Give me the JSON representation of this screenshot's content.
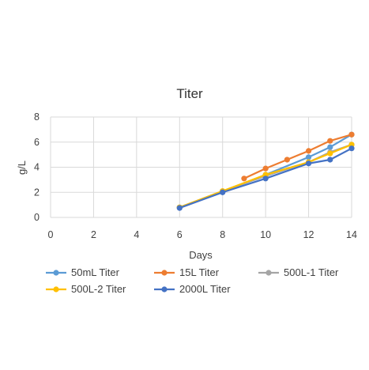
{
  "chart_data": {
    "type": "line",
    "title": "Titer",
    "xlabel": "Days",
    "ylabel": "g/L",
    "xlim": [
      0,
      14
    ],
    "ylim": [
      0,
      8
    ],
    "x_ticks": [
      "0",
      "2",
      "4",
      "6",
      "8",
      "10",
      "12",
      "14"
    ],
    "y_ticks": [
      "0",
      "2",
      "4",
      "6",
      "8"
    ],
    "grid": true,
    "legend_position": "bottom",
    "series": [
      {
        "name": "50mL Titer",
        "color": "#5B9BD5",
        "points": [
          [
            6,
            0.8
          ],
          [
            8,
            2.0
          ],
          [
            10,
            3.4
          ],
          [
            12,
            4.8
          ],
          [
            13,
            5.6
          ],
          [
            14,
            6.6
          ]
        ]
      },
      {
        "name": "15L Titer",
        "color": "#ED7D31",
        "points": [
          [
            9,
            3.1
          ],
          [
            10,
            3.9
          ],
          [
            11,
            4.6
          ],
          [
            12,
            5.3
          ],
          [
            13,
            6.1
          ],
          [
            14,
            6.6
          ]
        ]
      },
      {
        "name": "500L-1 Titer",
        "color": "#A5A5A5",
        "points": [
          [
            6,
            0.8
          ],
          [
            8,
            2.1
          ],
          [
            10,
            3.3
          ],
          [
            12,
            4.4
          ],
          [
            13,
            5.2
          ],
          [
            14,
            5.8
          ]
        ]
      },
      {
        "name": "500L-2 Titer",
        "color": "#FFC000",
        "points": [
          [
            6,
            0.8
          ],
          [
            8,
            2.1
          ],
          [
            10,
            3.4
          ],
          [
            12,
            4.4
          ],
          [
            13,
            5.1
          ],
          [
            14,
            5.8
          ]
        ]
      },
      {
        "name": "2000L Titer",
        "color": "#4472C4",
        "points": [
          [
            6,
            0.75
          ],
          [
            8,
            2.0
          ],
          [
            10,
            3.1
          ],
          [
            12,
            4.3
          ],
          [
            13,
            4.6
          ],
          [
            14,
            5.5
          ]
        ]
      }
    ]
  }
}
